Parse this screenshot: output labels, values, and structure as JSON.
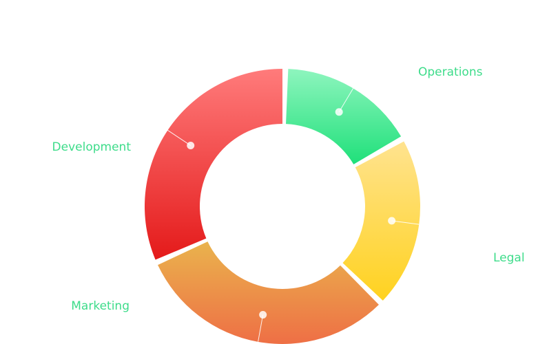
{
  "chart_data": {
    "type": "pie",
    "variant": "donut",
    "title": "",
    "categories": [
      "Operations",
      "Legal",
      "Marketing",
      "Development"
    ],
    "values": [
      16.5,
      20.5,
      31.0,
      32.0
    ],
    "colors": [
      [
        "#8ef5be",
        "#1fe07a"
      ],
      [
        "#ffe38f",
        "#ffd21f"
      ],
      [
        "#eab34d",
        "#ee6f45"
      ],
      [
        "#ff7b7b",
        "#e41a1a"
      ]
    ],
    "label_color": "#3ddc8a",
    "legend": "none"
  }
}
